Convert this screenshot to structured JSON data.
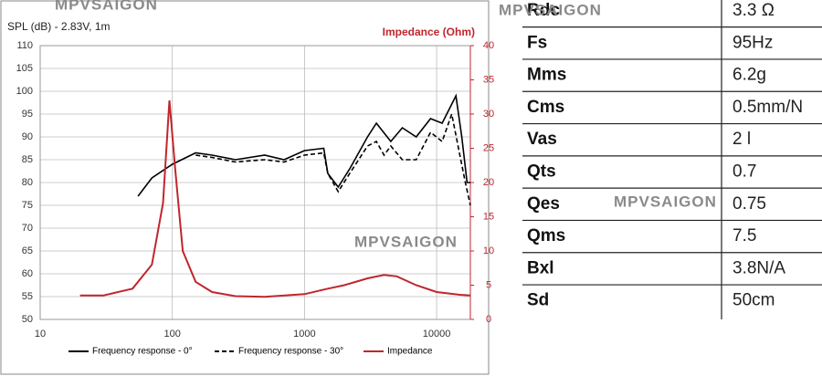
{
  "chart_data": {
    "type": "line",
    "title": "SPL (dB) - 2.83V, 1m",
    "y2_title": "Impedance (Ohm)",
    "xscale": "log",
    "xlim": [
      10,
      18000
    ],
    "xticks": [
      10,
      100,
      1000,
      10000
    ],
    "ylim": [
      50,
      110
    ],
    "yticks": [
      50,
      55,
      60,
      65,
      70,
      75,
      80,
      85,
      90,
      95,
      100,
      105,
      110
    ],
    "y2lim": [
      0,
      40
    ],
    "y2ticks": [
      0,
      5,
      10,
      15,
      20,
      25,
      30,
      35,
      40
    ],
    "grid": true,
    "legend": "bottom",
    "series": [
      {
        "name": "Frequency response - 0°",
        "color": "#000000",
        "dash": false,
        "x": [
          55,
          70,
          100,
          150,
          200,
          300,
          500,
          700,
          1000,
          1400,
          1500,
          1800,
          2200,
          3000,
          3500,
          4500,
          5500,
          7000,
          9000,
          11000,
          14000,
          15500,
          17000,
          18000
        ],
        "values": [
          77,
          81,
          84,
          86.5,
          86,
          85,
          86,
          85,
          87,
          87.5,
          82,
          79,
          83,
          90,
          93,
          89,
          92,
          90,
          94,
          93,
          99,
          90,
          80,
          80
        ]
      },
      {
        "name": "Frequency response - 30°",
        "color": "#000000",
        "dash": true,
        "x": [
          150,
          200,
          300,
          500,
          700,
          1000,
          1400,
          1500,
          1800,
          2200,
          3000,
          3500,
          4000,
          4500,
          5500,
          7000,
          9000,
          11000,
          13000,
          15000,
          16500,
          18000
        ],
        "values": [
          86,
          85.5,
          84.5,
          85,
          84.5,
          86,
          86.5,
          82,
          78,
          82,
          88,
          89,
          86,
          88,
          85,
          85,
          91,
          89,
          95,
          86,
          80,
          75
        ]
      },
      {
        "name": "Impedance",
        "color": "#c0262d",
        "dash": false,
        "axis": "y2",
        "x": [
          20,
          30,
          50,
          70,
          85,
          95,
          105,
          120,
          150,
          200,
          300,
          500,
          1000,
          1500,
          2000,
          3000,
          4000,
          5000,
          7000,
          10000,
          15000,
          18000
        ],
        "values": [
          3.5,
          3.5,
          4.5,
          8,
          17,
          32,
          22,
          10,
          5.5,
          4,
          3.4,
          3.3,
          3.7,
          4.5,
          5,
          6,
          6.5,
          6.3,
          5,
          4,
          3.6,
          3.5
        ]
      }
    ]
  },
  "specs": {
    "rows": [
      [
        "Rdc",
        "3.3 Ω"
      ],
      [
        "Fs",
        "95Hz"
      ],
      [
        "Mms",
        "6.2g"
      ],
      [
        "Cms",
        "0.5mm/N"
      ],
      [
        "Vas",
        "2 l"
      ],
      [
        "Qts",
        "0.7"
      ],
      [
        "Qes",
        "0.75"
      ],
      [
        "Qms",
        "7.5"
      ],
      [
        "Bxl",
        "3.8N/A"
      ],
      [
        "Sd",
        "50cm"
      ]
    ]
  },
  "watermarks": [
    "MPVSAIGON",
    "MPVSAIGON",
    "MPVSAIGON",
    "MPVSAIGON"
  ]
}
